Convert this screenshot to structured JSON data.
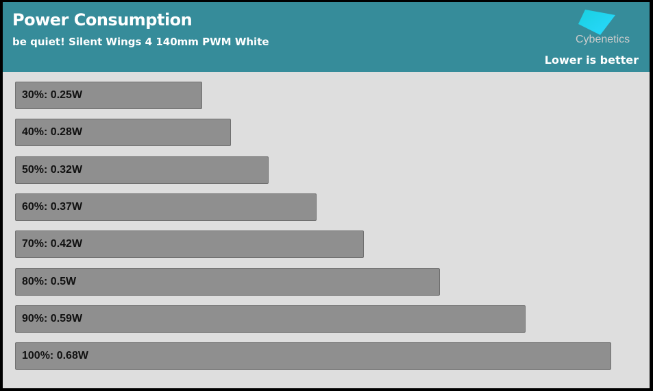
{
  "header": {
    "title": "Power Consumption",
    "subtitle": "be quiet! Silent Wings 4 140mm PWM White",
    "note": "Lower is better",
    "brand": "Cybenetics"
  },
  "colors": {
    "header": "#368c9a",
    "bar": "#8f8f8f",
    "background": "#dedede"
  },
  "chart_data": {
    "type": "bar",
    "orientation": "horizontal",
    "categories": [
      "30%",
      "40%",
      "50%",
      "60%",
      "70%",
      "80%",
      "90%",
      "100%"
    ],
    "values": [
      0.25,
      0.28,
      0.32,
      0.37,
      0.42,
      0.5,
      0.59,
      0.68
    ],
    "labels": [
      "30%: 0.25W",
      "40%: 0.28W",
      "50%: 0.32W",
      "60%: 0.37W",
      "70%: 0.42W",
      "80%: 0.5W",
      "90%: 0.59W",
      "100%: 0.68W"
    ],
    "unit": "W"
  }
}
